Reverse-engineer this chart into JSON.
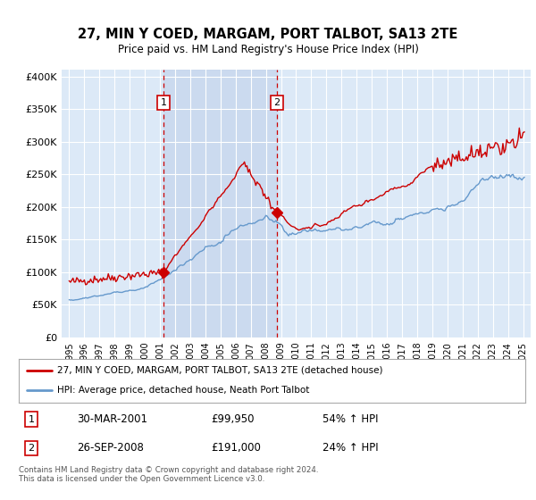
{
  "title": "27, MIN Y COED, MARGAM, PORT TALBOT, SA13 2TE",
  "subtitle": "Price paid vs. HM Land Registry's House Price Index (HPI)",
  "background_color": "#ffffff",
  "plot_bg_color": "#dce9f7",
  "grid_color": "#ffffff",
  "red_line_color": "#cc0000",
  "blue_line_color": "#6699cc",
  "shade_color": "#c8d8ee",
  "marker1_date_x": 2001.24,
  "marker2_date_x": 2008.74,
  "marker1_price": 99950,
  "marker2_price": 191000,
  "legend_line1": "27, MIN Y COED, MARGAM, PORT TALBOT, SA13 2TE (detached house)",
  "legend_line2": "HPI: Average price, detached house, Neath Port Talbot",
  "table_row1": [
    "1",
    "30-MAR-2001",
    "£99,950",
    "54% ↑ HPI"
  ],
  "table_row2": [
    "2",
    "26-SEP-2008",
    "£191,000",
    "24% ↑ HPI"
  ],
  "footer": "Contains HM Land Registry data © Crown copyright and database right 2024.\nThis data is licensed under the Open Government Licence v3.0.",
  "ylim": [
    0,
    410000
  ],
  "xlim_start": 1994.5,
  "xlim_end": 2025.5
}
